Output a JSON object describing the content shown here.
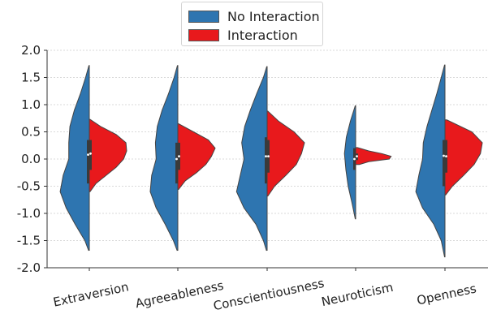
{
  "colors": {
    "no_interaction": "#2e75b0",
    "interaction": "#e8191c"
  },
  "chart_data": {
    "type": "violin",
    "categories": [
      "Extraversion",
      "Agreeableness",
      "Conscientiousness",
      "Neuroticism",
      "Openness"
    ],
    "ylim": [
      -2.0,
      2.0
    ],
    "yticks": [
      "2.0",
      "1.5",
      "1.0",
      "0.5",
      "0.0",
      "-0.5",
      "-1.0",
      "-1.5",
      "-2.0"
    ],
    "grid": true,
    "legend_position": "top-center",
    "series": [
      {
        "name": "No Interaction",
        "side": "left",
        "ranges": [
          [
            -1.68,
            1.72
          ],
          [
            -1.68,
            1.72
          ],
          [
            -1.68,
            1.7
          ],
          [
            -1.1,
            0.98
          ],
          [
            -1.8,
            1.73
          ]
        ],
        "medians": [
          0.08,
          0.0,
          0.05,
          0.0,
          0.06
        ],
        "quartiles": [
          [
            -0.45,
            0.35
          ],
          [
            -0.45,
            0.3
          ],
          [
            -0.45,
            0.4
          ],
          [
            -0.2,
            0.2
          ],
          [
            -0.5,
            0.35
          ]
        ],
        "density": [
          [
            [
              -1.68,
              0.02
            ],
            [
              -1.5,
              0.12
            ],
            [
              -1.2,
              0.38
            ],
            [
              -0.9,
              0.62
            ],
            [
              -0.6,
              0.78
            ],
            [
              -0.3,
              0.7
            ],
            [
              0.0,
              0.55
            ],
            [
              0.3,
              0.55
            ],
            [
              0.6,
              0.52
            ],
            [
              0.9,
              0.4
            ],
            [
              1.2,
              0.24
            ],
            [
              1.5,
              0.1
            ],
            [
              1.72,
              0.01
            ]
          ],
          [
            [
              -1.68,
              0.02
            ],
            [
              -1.5,
              0.12
            ],
            [
              -1.2,
              0.34
            ],
            [
              -0.9,
              0.58
            ],
            [
              -0.6,
              0.74
            ],
            [
              -0.3,
              0.7
            ],
            [
              0.0,
              0.58
            ],
            [
              0.3,
              0.6
            ],
            [
              0.6,
              0.55
            ],
            [
              0.9,
              0.42
            ],
            [
              1.2,
              0.25
            ],
            [
              1.5,
              0.1
            ],
            [
              1.72,
              0.01
            ]
          ],
          [
            [
              -1.68,
              0.02
            ],
            [
              -1.5,
              0.1
            ],
            [
              -1.2,
              0.3
            ],
            [
              -0.9,
              0.62
            ],
            [
              -0.6,
              0.82
            ],
            [
              -0.3,
              0.72
            ],
            [
              0.0,
              0.62
            ],
            [
              0.3,
              0.68
            ],
            [
              0.6,
              0.6
            ],
            [
              0.9,
              0.45
            ],
            [
              1.2,
              0.28
            ],
            [
              1.5,
              0.1
            ],
            [
              1.7,
              0.01
            ]
          ],
          [
            [
              -1.1,
              0.01
            ],
            [
              -0.8,
              0.1
            ],
            [
              -0.5,
              0.2
            ],
            [
              -0.2,
              0.26
            ],
            [
              0.1,
              0.3
            ],
            [
              0.4,
              0.25
            ],
            [
              0.7,
              0.14
            ],
            [
              0.98,
              0.01
            ]
          ],
          [
            [
              -1.8,
              0.01
            ],
            [
              -1.5,
              0.1
            ],
            [
              -1.2,
              0.3
            ],
            [
              -0.9,
              0.6
            ],
            [
              -0.6,
              0.78
            ],
            [
              -0.3,
              0.7
            ],
            [
              0.0,
              0.6
            ],
            [
              0.3,
              0.58
            ],
            [
              0.6,
              0.48
            ],
            [
              0.9,
              0.35
            ],
            [
              1.2,
              0.22
            ],
            [
              1.5,
              0.1
            ],
            [
              1.73,
              0.01
            ]
          ]
        ]
      },
      {
        "name": "Interaction",
        "side": "right",
        "ranges": [
          [
            -0.6,
            0.73
          ],
          [
            -0.56,
            0.65
          ],
          [
            -0.68,
            0.88
          ],
          [
            -0.1,
            0.21
          ],
          [
            -0.66,
            0.72
          ]
        ],
        "medians": [
          0.1,
          0.05,
          0.05,
          0.05,
          0.05
        ],
        "quartiles": [
          [
            -0.2,
            0.35
          ],
          [
            -0.2,
            0.3
          ],
          [
            -0.25,
            0.35
          ],
          [
            -0.02,
            0.1
          ],
          [
            -0.25,
            0.35
          ]
        ],
        "density": [
          [
            [
              -0.6,
              0.02
            ],
            [
              -0.45,
              0.18
            ],
            [
              -0.3,
              0.45
            ],
            [
              -0.15,
              0.72
            ],
            [
              0.0,
              0.92
            ],
            [
              0.15,
              1.0
            ],
            [
              0.3,
              0.98
            ],
            [
              0.45,
              0.72
            ],
            [
              0.6,
              0.3
            ],
            [
              0.73,
              0.02
            ]
          ],
          [
            [
              -0.56,
              0.02
            ],
            [
              -0.4,
              0.2
            ],
            [
              -0.25,
              0.5
            ],
            [
              -0.1,
              0.75
            ],
            [
              0.05,
              0.9
            ],
            [
              0.2,
              1.0
            ],
            [
              0.35,
              0.82
            ],
            [
              0.5,
              0.42
            ],
            [
              0.65,
              0.02
            ]
          ],
          [
            [
              -0.68,
              0.02
            ],
            [
              -0.5,
              0.2
            ],
            [
              -0.3,
              0.5
            ],
            [
              -0.1,
              0.78
            ],
            [
              0.1,
              0.92
            ],
            [
              0.3,
              1.0
            ],
            [
              0.5,
              0.72
            ],
            [
              0.7,
              0.3
            ],
            [
              0.88,
              0.02
            ]
          ],
          [
            [
              -0.1,
              0.1
            ],
            [
              -0.05,
              0.35
            ],
            [
              0.0,
              0.9
            ],
            [
              0.05,
              0.95
            ],
            [
              0.1,
              0.7
            ],
            [
              0.15,
              0.35
            ],
            [
              0.21,
              0.05
            ]
          ],
          [
            [
              -0.66,
              0.02
            ],
            [
              -0.5,
              0.2
            ],
            [
              -0.3,
              0.5
            ],
            [
              -0.1,
              0.78
            ],
            [
              0.1,
              0.95
            ],
            [
              0.3,
              1.0
            ],
            [
              0.5,
              0.72
            ],
            [
              0.72,
              0.05
            ]
          ]
        ]
      }
    ]
  }
}
